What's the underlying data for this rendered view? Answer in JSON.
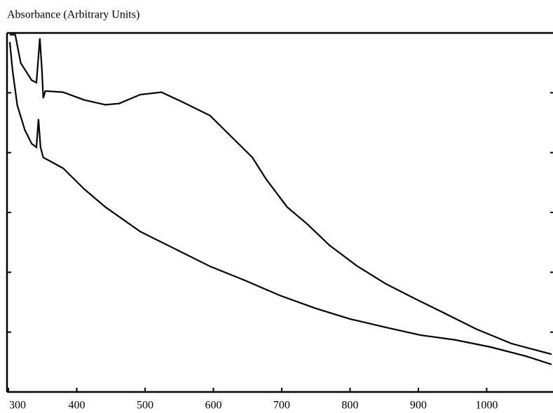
{
  "chart_data": {
    "type": "line",
    "title": "Absorbance (Arbitrary Units)",
    "xlim": [
      300,
      1095
    ],
    "xticks": [
      300,
      400,
      500,
      600,
      700,
      800,
      900,
      1000
    ],
    "ylim": [
      0,
      6
    ],
    "yticks": [
      0,
      1,
      2,
      3,
      4,
      5,
      6
    ],
    "series": [
      {
        "color": "#000000",
        "x": [
          302,
          310,
          318,
          334,
          341,
          346,
          349,
          351,
          354,
          380,
          411,
          442,
          462,
          493,
          524,
          554,
          595,
          626,
          657,
          677,
          708,
          738,
          770,
          811,
          852,
          893,
          934,
          985,
          1036,
          1095
        ],
        "values": [
          5.97,
          5.97,
          5.5,
          5.21,
          5.17,
          5.91,
          5.39,
          4.91,
          5.03,
          5.01,
          4.88,
          4.8,
          4.82,
          4.97,
          5.01,
          4.85,
          4.62,
          4.27,
          3.92,
          3.56,
          3.09,
          2.8,
          2.45,
          2.1,
          1.81,
          1.57,
          1.34,
          1.05,
          0.81,
          0.63
        ]
      },
      {
        "color": "#000000",
        "x": [
          302,
          306,
          313,
          324,
          334,
          341,
          344,
          347,
          351,
          380,
          411,
          442,
          493,
          544,
          595,
          647,
          698,
          749,
          800,
          852,
          903,
          954,
          1006,
          1057,
          1095
        ],
        "values": [
          5.85,
          5.38,
          4.79,
          4.38,
          4.15,
          4.09,
          4.56,
          4.09,
          3.92,
          3.74,
          3.39,
          3.09,
          2.68,
          2.39,
          2.1,
          1.86,
          1.61,
          1.4,
          1.22,
          1.08,
          0.95,
          0.87,
          0.75,
          0.6,
          0.46
        ]
      }
    ]
  }
}
